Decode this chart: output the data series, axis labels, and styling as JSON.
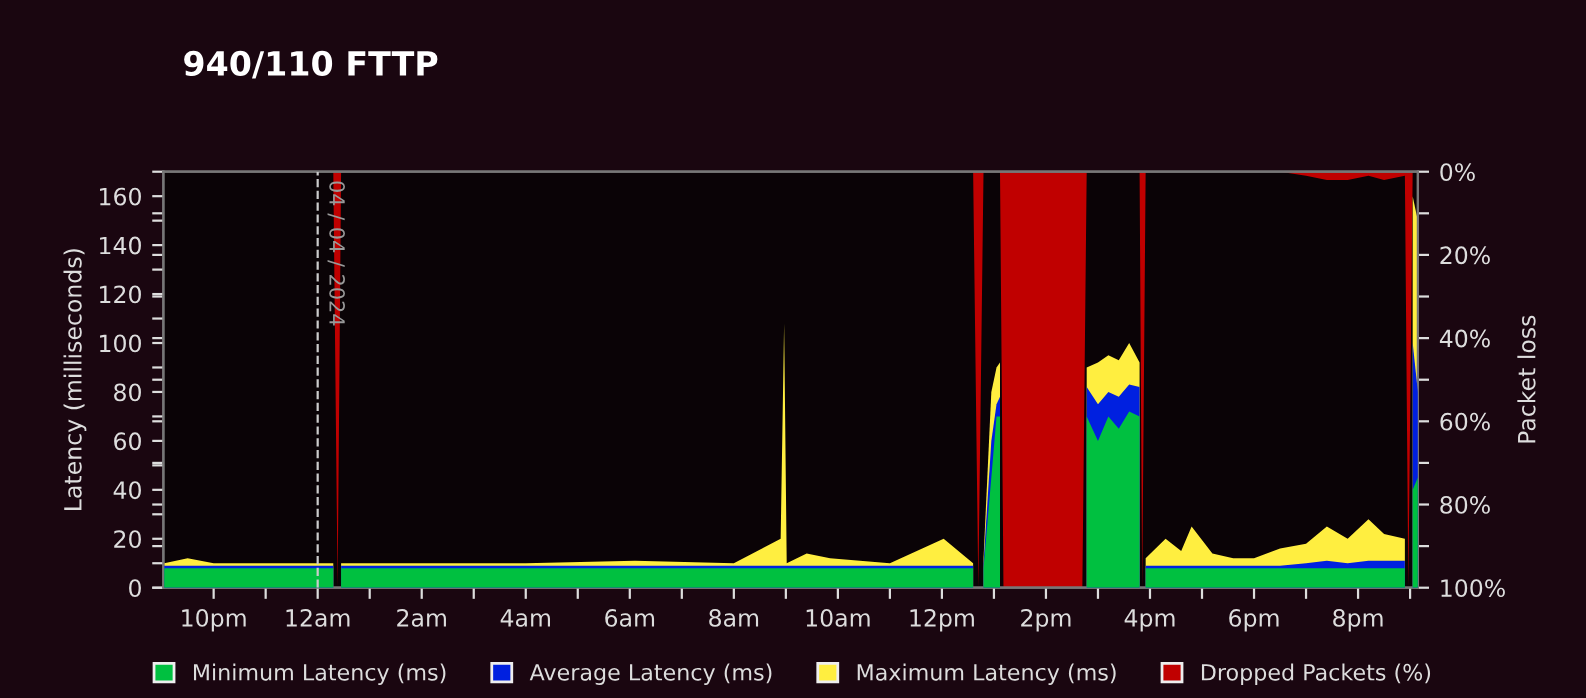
{
  "chart_data": {
    "type": "area",
    "title": "940/110 FTTP",
    "xlabel": null,
    "ylabel": "Latency (milliseconds)",
    "y2label": "Packet loss",
    "x": [
      "2024-04-03T21:03",
      "2024-04-03T21:30",
      "2024-04-03T22:00",
      "2024-04-03T22:36",
      "2024-04-03T23:00",
      "2024-04-03T23:54",
      "2024-04-04T00:18",
      "2024-04-04T00:23",
      "2024-04-04T00:27",
      "2024-04-04T02:00",
      "2024-04-04T04:00",
      "2024-04-04T06:06",
      "2024-04-04T08:00",
      "2024-04-04T08:54",
      "2024-04-04T08:58",
      "2024-04-04T09:01",
      "2024-04-04T09:24",
      "2024-04-04T09:51",
      "2024-04-04T11:00",
      "2024-04-04T12:02",
      "2024-04-04T12:36",
      "2024-04-04T12:42",
      "2024-04-04T12:48",
      "2024-04-04T12:57",
      "2024-04-04T13:03",
      "2024-04-04T13:07",
      "2024-04-04T13:11",
      "2024-04-04T14:42",
      "2024-04-04T14:47",
      "2024-04-04T15:00",
      "2024-04-04T15:12",
      "2024-04-04T15:24",
      "2024-04-04T15:36",
      "2024-04-04T15:48",
      "2024-04-04T15:51",
      "2024-04-04T15:55",
      "2024-04-04T16:18",
      "2024-04-04T16:36",
      "2024-04-04T16:48",
      "2024-04-04T17:12",
      "2024-04-04T17:36",
      "2024-04-04T18:00",
      "2024-04-04T18:30",
      "2024-04-04T19:00",
      "2024-04-04T19:24",
      "2024-04-04T19:48",
      "2024-04-04T20:12",
      "2024-04-04T20:30",
      "2024-04-04T20:54",
      "2024-04-04T20:58",
      "2024-04-04T21:03",
      "2024-04-04T21:09"
    ],
    "series": [
      {
        "name": "Minimum Latency (ms)",
        "color": "#00c040",
        "values": [
          8,
          8,
          8,
          8,
          8,
          8,
          8,
          null,
          8,
          8,
          8,
          8,
          8,
          8,
          8,
          8,
          8,
          8,
          8,
          8,
          8,
          null,
          8,
          45,
          70,
          70,
          null,
          null,
          70,
          60,
          70,
          65,
          72,
          70,
          null,
          8,
          8,
          8,
          8,
          8,
          8,
          8,
          8,
          8,
          8,
          8,
          8,
          8,
          8,
          null,
          40,
          45
        ]
      },
      {
        "name": "Average Latency (ms)",
        "color": "#0020e0",
        "values": [
          9,
          9,
          9,
          9,
          9,
          9,
          9,
          null,
          9,
          9,
          9,
          9,
          9,
          9,
          9,
          9,
          9,
          9,
          9,
          9,
          9,
          null,
          10,
          60,
          75,
          78,
          null,
          null,
          82,
          75,
          80,
          78,
          83,
          82,
          null,
          9,
          9,
          9,
          9,
          9,
          9,
          9,
          9,
          10,
          11,
          10,
          11,
          11,
          11,
          null,
          100,
          80
        ]
      },
      {
        "name": "Maximum Latency (ms)",
        "color": "#ffee40",
        "values": [
          10,
          12,
          10,
          10,
          10,
          10,
          10,
          null,
          10,
          10,
          10,
          11,
          10,
          20,
          108,
          10,
          14,
          12,
          10,
          20,
          10,
          null,
          12,
          80,
          90,
          92,
          null,
          null,
          90,
          92,
          95,
          93,
          100,
          92,
          null,
          12,
          20,
          15,
          25,
          14,
          12,
          12,
          16,
          18,
          25,
          20,
          28,
          22,
          20,
          null,
          160,
          150
        ]
      },
      {
        "name": "Dropped Packets (%)",
        "color": "#c00000",
        "axis": "y2",
        "values": [
          0,
          0,
          0,
          0,
          0,
          0,
          0,
          100,
          0,
          0,
          0,
          0,
          0,
          0,
          0,
          0,
          0,
          0,
          0,
          0,
          0,
          100,
          0,
          0,
          0,
          0,
          100,
          100,
          0,
          0,
          0,
          0,
          0,
          0,
          100,
          0,
          0,
          0,
          0,
          0,
          0,
          0,
          0,
          1,
          2,
          2,
          1,
          2,
          1,
          100,
          0,
          0
        ]
      }
    ],
    "xlim": [
      "2024-04-03T21:02",
      "2024-04-04T21:09"
    ],
    "xticks": [
      {
        "value": "2024-04-03T22:00",
        "label": "10pm"
      },
      {
        "value": "2024-04-03T23:00",
        "label": null
      },
      {
        "value": "2024-04-04T00:00",
        "label": "12am"
      },
      {
        "value": "2024-04-04T01:00",
        "label": null
      },
      {
        "value": "2024-04-04T02:00",
        "label": "2am"
      },
      {
        "value": "2024-04-04T03:00",
        "label": null
      },
      {
        "value": "2024-04-04T04:00",
        "label": "4am"
      },
      {
        "value": "2024-04-04T05:00",
        "label": null
      },
      {
        "value": "2024-04-04T06:00",
        "label": "6am"
      },
      {
        "value": "2024-04-04T07:00",
        "label": null
      },
      {
        "value": "2024-04-04T08:00",
        "label": "8am"
      },
      {
        "value": "2024-04-04T09:00",
        "label": null
      },
      {
        "value": "2024-04-04T10:00",
        "label": "10am"
      },
      {
        "value": "2024-04-04T11:00",
        "label": null
      },
      {
        "value": "2024-04-04T12:00",
        "label": "12pm"
      },
      {
        "value": "2024-04-04T13:00",
        "label": null
      },
      {
        "value": "2024-04-04T14:00",
        "label": "2pm"
      },
      {
        "value": "2024-04-04T15:00",
        "label": null
      },
      {
        "value": "2024-04-04T16:00",
        "label": "4pm"
      },
      {
        "value": "2024-04-04T17:00",
        "label": null
      },
      {
        "value": "2024-04-04T18:00",
        "label": "6pm"
      },
      {
        "value": "2024-04-04T19:00",
        "label": null
      },
      {
        "value": "2024-04-04T20:00",
        "label": "8pm"
      },
      {
        "value": "2024-04-04T21:00",
        "label": null
      }
    ],
    "ylim": [
      0,
      170
    ],
    "yticks": [
      0,
      {
        "value": 10,
        "label": null
      },
      20,
      {
        "value": 30,
        "label": null
      },
      40,
      {
        "value": 50,
        "label": null
      },
      60,
      {
        "value": 70,
        "label": null
      },
      80,
      {
        "value": 90,
        "label": null
      },
      100,
      {
        "value": 110,
        "label": null
      },
      120,
      {
        "value": 130,
        "label": null
      },
      140,
      {
        "value": 150,
        "label": null
      },
      160
    ],
    "y2lim": [
      100,
      0
    ],
    "y2ticks": [
      {
        "value": 0,
        "label": "0%"
      },
      {
        "value": 10,
        "label": null
      },
      {
        "value": 20,
        "label": "20%"
      },
      {
        "value": 30,
        "label": null
      },
      {
        "value": 40,
        "label": "40%"
      },
      {
        "value": 50,
        "label": null
      },
      {
        "value": 60,
        "label": "60%"
      },
      {
        "value": 70,
        "label": null
      },
      {
        "value": 80,
        "label": "80%"
      },
      {
        "value": 90,
        "label": null
      },
      {
        "value": 100,
        "label": "100%"
      }
    ],
    "ref_lines": [
      {
        "axis": "x",
        "value": "2024-04-04T00:00",
        "label": "04 / 04 / 2024",
        "color": "#cccccc",
        "line_style": "dashed"
      }
    ],
    "grid": false,
    "legend": "bottom"
  }
}
